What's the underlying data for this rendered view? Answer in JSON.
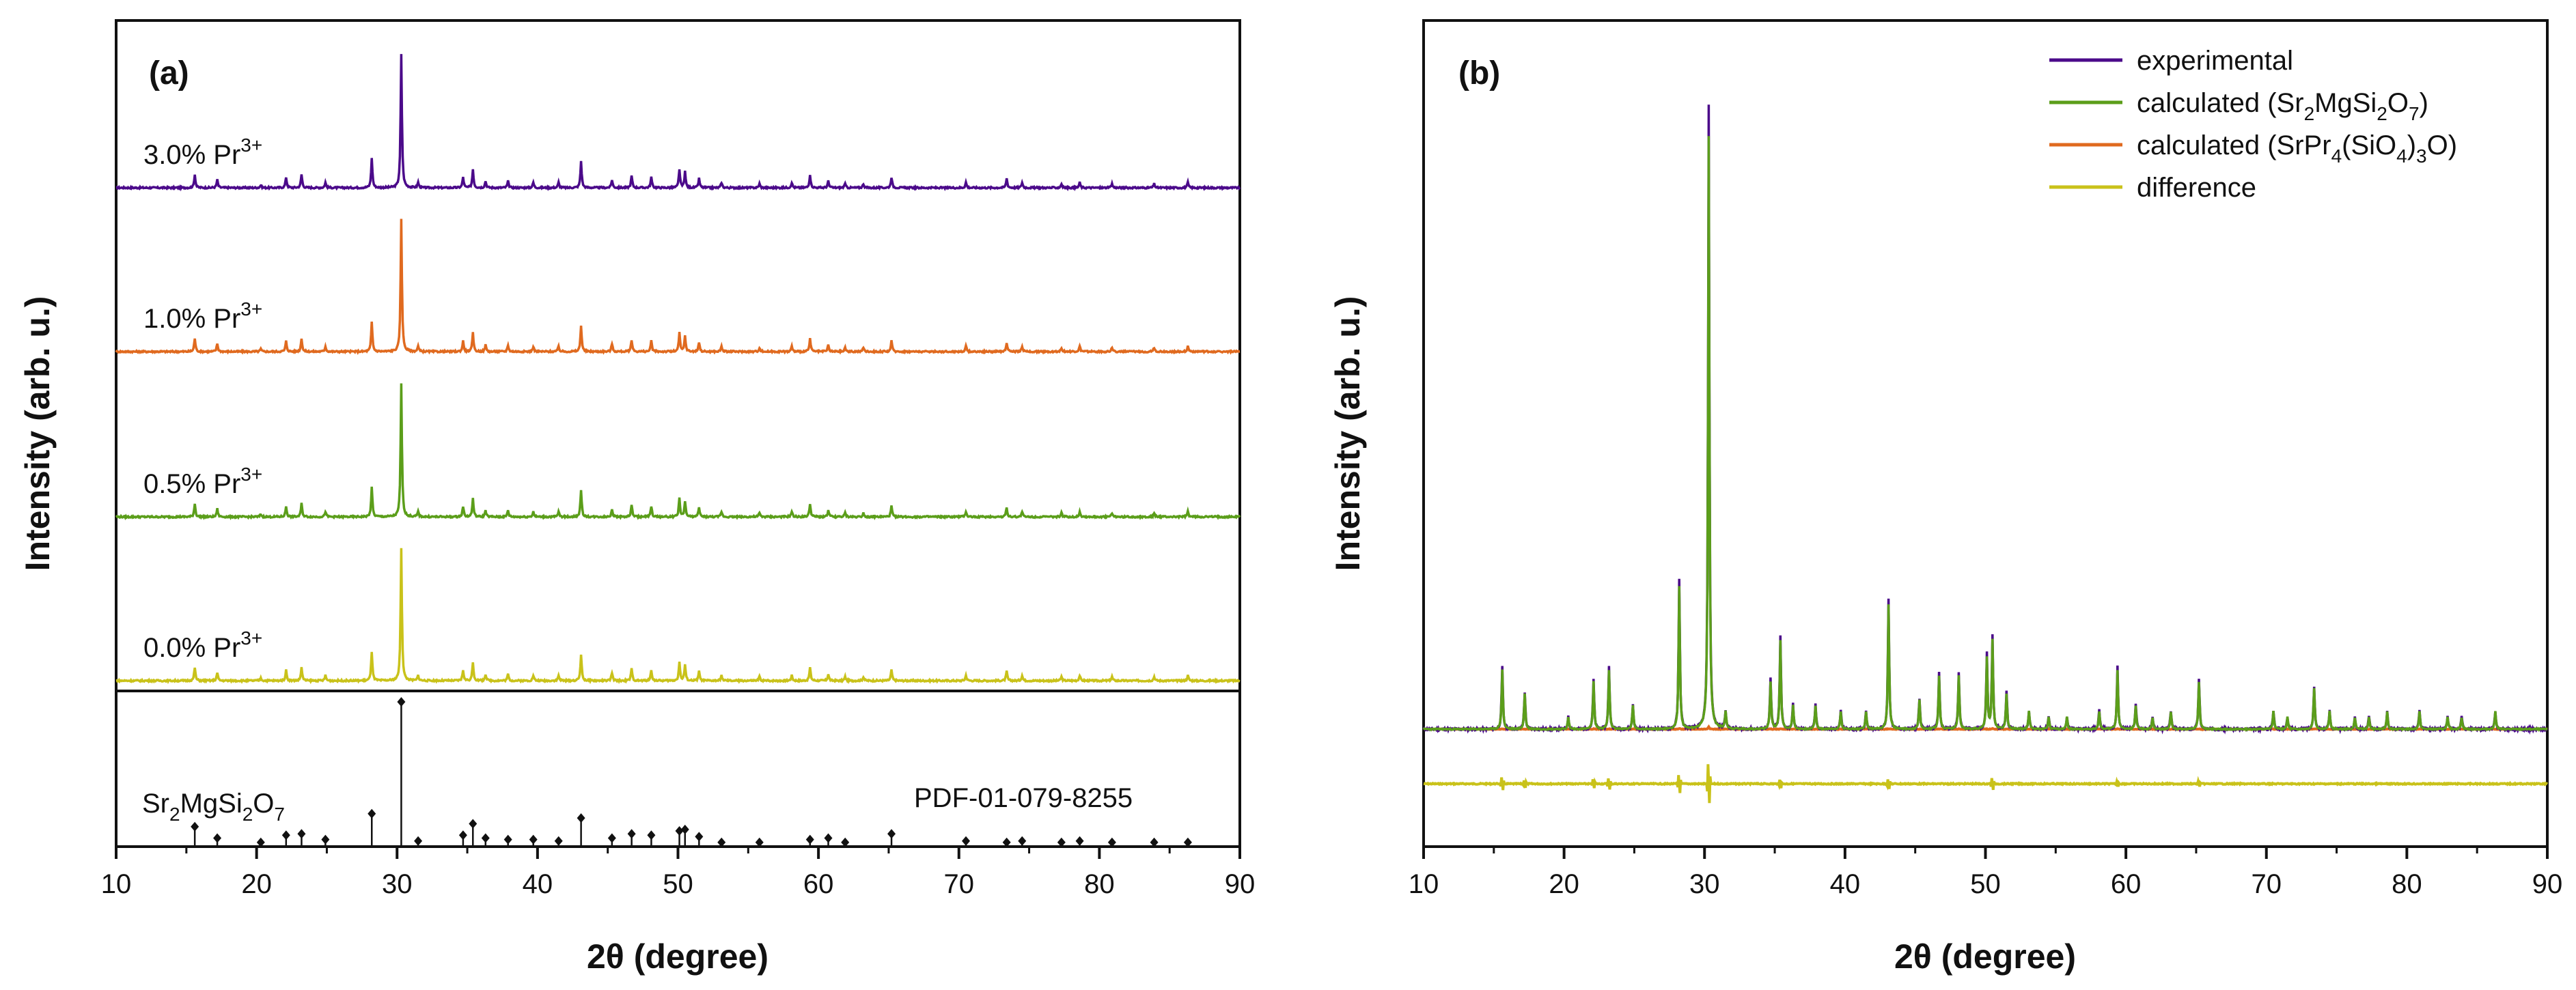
{
  "chart_data": [
    {
      "type": "line",
      "panel_label": "(a)",
      "xlabel_main": "2",
      "xlabel_theta": "θ",
      "xlabel_unit": " (degree)",
      "ylabel": "Intensity (arb. u.)",
      "xlim": [
        10,
        90
      ],
      "xticks": [
        "10",
        "20",
        "30",
        "40",
        "50",
        "60",
        "70",
        "80",
        "90"
      ],
      "ylim_note": "arbitrary units, stacked offset patterns",
      "series_label_unit": "Pr",
      "series_label_sup": "3+",
      "series": [
        {
          "name": "3.0% Pr3+",
          "label_prefix": "3.0% ",
          "color": "#4B0A8A"
        },
        {
          "name": "1.0% Pr3+",
          "label_prefix": "1.0% ",
          "color": "#E06A1F"
        },
        {
          "name": "0.5% Pr3+",
          "label_prefix": "0.5% ",
          "color": "#5B9E1A"
        },
        {
          "name": "0.0% Pr3+",
          "label_prefix": "0.0% ",
          "color": "#C9C21A"
        }
      ],
      "peaks": [
        {
          "x": 15.6,
          "rel": 0.1
        },
        {
          "x": 17.2,
          "rel": 0.06
        },
        {
          "x": 20.3,
          "rel": 0.02
        },
        {
          "x": 22.1,
          "rel": 0.08
        },
        {
          "x": 23.2,
          "rel": 0.1
        },
        {
          "x": 24.9,
          "rel": 0.04
        },
        {
          "x": 28.2,
          "rel": 0.22
        },
        {
          "x": 30.3,
          "rel": 1.0
        },
        {
          "x": 31.5,
          "rel": 0.04
        },
        {
          "x": 34.7,
          "rel": 0.08
        },
        {
          "x": 35.4,
          "rel": 0.14
        },
        {
          "x": 36.3,
          "rel": 0.05
        },
        {
          "x": 37.9,
          "rel": 0.05
        },
        {
          "x": 39.7,
          "rel": 0.04
        },
        {
          "x": 41.5,
          "rel": 0.04
        },
        {
          "x": 43.1,
          "rel": 0.2
        },
        {
          "x": 45.3,
          "rel": 0.06
        },
        {
          "x": 46.7,
          "rel": 0.09
        },
        {
          "x": 48.1,
          "rel": 0.08
        },
        {
          "x": 50.1,
          "rel": 0.14
        },
        {
          "x": 50.5,
          "rel": 0.12
        },
        {
          "x": 51.5,
          "rel": 0.07
        },
        {
          "x": 53.1,
          "rel": 0.04
        },
        {
          "x": 55.8,
          "rel": 0.03
        },
        {
          "x": 58.1,
          "rel": 0.04
        },
        {
          "x": 59.4,
          "rel": 0.1
        },
        {
          "x": 60.7,
          "rel": 0.05
        },
        {
          "x": 61.9,
          "rel": 0.03
        },
        {
          "x": 63.2,
          "rel": 0.03
        },
        {
          "x": 65.2,
          "rel": 0.08
        },
        {
          "x": 70.5,
          "rel": 0.04
        },
        {
          "x": 73.4,
          "rel": 0.07
        },
        {
          "x": 74.5,
          "rel": 0.04
        },
        {
          "x": 77.3,
          "rel": 0.03
        },
        {
          "x": 78.6,
          "rel": 0.04
        },
        {
          "x": 80.9,
          "rel": 0.03
        },
        {
          "x": 83.9,
          "rel": 0.03
        },
        {
          "x": 86.3,
          "rel": 0.04
        }
      ],
      "reference": {
        "compound": "Sr2MgSi2O7",
        "compound_parts": [
          {
            "t": "Sr",
            "sub": false
          },
          {
            "t": "2",
            "sub": true
          },
          {
            "t": "MgSi",
            "sub": false
          },
          {
            "t": "2",
            "sub": true
          },
          {
            "t": "O",
            "sub": false
          },
          {
            "t": "7",
            "sub": true
          }
        ],
        "card": "PDF-01-079-8255",
        "sticks": [
          {
            "x": 15.6,
            "rel": 0.13
          },
          {
            "x": 17.2,
            "rel": 0.05
          },
          {
            "x": 20.3,
            "rel": 0.02
          },
          {
            "x": 22.1,
            "rel": 0.07
          },
          {
            "x": 23.2,
            "rel": 0.08
          },
          {
            "x": 24.9,
            "rel": 0.04
          },
          {
            "x": 28.2,
            "rel": 0.22
          },
          {
            "x": 30.3,
            "rel": 1.0
          },
          {
            "x": 31.5,
            "rel": 0.03
          },
          {
            "x": 34.7,
            "rel": 0.07
          },
          {
            "x": 35.4,
            "rel": 0.15
          },
          {
            "x": 36.3,
            "rel": 0.05
          },
          {
            "x": 37.9,
            "rel": 0.04
          },
          {
            "x": 39.7,
            "rel": 0.04
          },
          {
            "x": 41.5,
            "rel": 0.03
          },
          {
            "x": 43.1,
            "rel": 0.19
          },
          {
            "x": 45.3,
            "rel": 0.05
          },
          {
            "x": 46.7,
            "rel": 0.08
          },
          {
            "x": 48.1,
            "rel": 0.07
          },
          {
            "x": 50.1,
            "rel": 0.1
          },
          {
            "x": 50.5,
            "rel": 0.11
          },
          {
            "x": 51.5,
            "rel": 0.06
          },
          {
            "x": 53.1,
            "rel": 0.02
          },
          {
            "x": 55.8,
            "rel": 0.02
          },
          {
            "x": 59.4,
            "rel": 0.04
          },
          {
            "x": 60.7,
            "rel": 0.05
          },
          {
            "x": 61.9,
            "rel": 0.02
          },
          {
            "x": 65.2,
            "rel": 0.08
          },
          {
            "x": 70.5,
            "rel": 0.03
          },
          {
            "x": 73.4,
            "rel": 0.02
          },
          {
            "x": 74.5,
            "rel": 0.03
          },
          {
            "x": 77.3,
            "rel": 0.02
          },
          {
            "x": 78.6,
            "rel": 0.03
          },
          {
            "x": 80.9,
            "rel": 0.02
          },
          {
            "x": 83.9,
            "rel": 0.02
          },
          {
            "x": 86.3,
            "rel": 0.02
          }
        ]
      }
    },
    {
      "type": "line",
      "panel_label": "(b)",
      "xlabel_main": "2",
      "xlabel_theta": "θ",
      "xlabel_unit": " (degree)",
      "ylabel": "Intensity (arb. u.)",
      "xlim": [
        10,
        90
      ],
      "xticks": [
        "10",
        "20",
        "30",
        "40",
        "50",
        "60",
        "70",
        "80",
        "90"
      ],
      "legend_position": "top-right",
      "legend": [
        {
          "name": "experimental",
          "color": "#4B0A8A",
          "parts": [
            {
              "t": "experimental",
              "sub": false
            }
          ]
        },
        {
          "name": "calculated (Sr2MgSi2O7)",
          "color": "#5B9E1A",
          "parts": [
            {
              "t": "calculated (Sr",
              "sub": false
            },
            {
              "t": "2",
              "sub": true
            },
            {
              "t": "MgSi",
              "sub": false
            },
            {
              "t": "2",
              "sub": true
            },
            {
              "t": "O",
              "sub": false
            },
            {
              "t": "7",
              "sub": true
            },
            {
              "t": ")",
              "sub": false
            }
          ]
        },
        {
          "name": "calculated (SrPr4(SiO4)3O)",
          "color": "#E06A1F",
          "parts": [
            {
              "t": "calculated (SrPr",
              "sub": false
            },
            {
              "t": "4",
              "sub": true
            },
            {
              "t": "(SiO",
              "sub": false
            },
            {
              "t": "4",
              "sub": true
            },
            {
              "t": ")",
              "sub": false
            },
            {
              "t": "3",
              "sub": true
            },
            {
              "t": "O)",
              "sub": false
            }
          ]
        },
        {
          "name": "difference",
          "color": "#C9C21A",
          "parts": [
            {
              "t": "difference",
              "sub": false
            }
          ]
        }
      ],
      "peaks": [
        {
          "x": 15.6,
          "rel": 0.1
        },
        {
          "x": 17.2,
          "rel": 0.06
        },
        {
          "x": 20.3,
          "rel": 0.02
        },
        {
          "x": 22.1,
          "rel": 0.08
        },
        {
          "x": 23.2,
          "rel": 0.1
        },
        {
          "x": 24.9,
          "rel": 0.04
        },
        {
          "x": 28.2,
          "rel": 0.24
        },
        {
          "x": 30.3,
          "rel": 1.0
        },
        {
          "x": 31.5,
          "rel": 0.03
        },
        {
          "x": 34.7,
          "rel": 0.08
        },
        {
          "x": 35.4,
          "rel": 0.15
        },
        {
          "x": 36.3,
          "rel": 0.04
        },
        {
          "x": 37.9,
          "rel": 0.04
        },
        {
          "x": 39.7,
          "rel": 0.03
        },
        {
          "x": 41.5,
          "rel": 0.03
        },
        {
          "x": 43.1,
          "rel": 0.21
        },
        {
          "x": 45.3,
          "rel": 0.05
        },
        {
          "x": 46.7,
          "rel": 0.09
        },
        {
          "x": 48.1,
          "rel": 0.09
        },
        {
          "x": 50.1,
          "rel": 0.12
        },
        {
          "x": 50.5,
          "rel": 0.15
        },
        {
          "x": 51.5,
          "rel": 0.06
        },
        {
          "x": 53.1,
          "rel": 0.03
        },
        {
          "x": 54.5,
          "rel": 0.02
        },
        {
          "x": 55.8,
          "rel": 0.02
        },
        {
          "x": 58.1,
          "rel": 0.03
        },
        {
          "x": 59.4,
          "rel": 0.1
        },
        {
          "x": 60.7,
          "rel": 0.04
        },
        {
          "x": 61.9,
          "rel": 0.02
        },
        {
          "x": 63.2,
          "rel": 0.03
        },
        {
          "x": 65.2,
          "rel": 0.08
        },
        {
          "x": 70.5,
          "rel": 0.03
        },
        {
          "x": 71.5,
          "rel": 0.02
        },
        {
          "x": 73.4,
          "rel": 0.07
        },
        {
          "x": 74.5,
          "rel": 0.03
        },
        {
          "x": 76.3,
          "rel": 0.02
        },
        {
          "x": 77.3,
          "rel": 0.02
        },
        {
          "x": 78.6,
          "rel": 0.03
        },
        {
          "x": 80.9,
          "rel": 0.03
        },
        {
          "x": 82.9,
          "rel": 0.02
        },
        {
          "x": 83.9,
          "rel": 0.02
        },
        {
          "x": 86.3,
          "rel": 0.03
        }
      ],
      "difference_spikes": [
        {
          "x": 15.6,
          "amp": 0.35
        },
        {
          "x": 17.2,
          "amp": 0.2
        },
        {
          "x": 22.1,
          "amp": 0.25
        },
        {
          "x": 23.2,
          "amp": 0.3
        },
        {
          "x": 28.2,
          "amp": 0.45
        },
        {
          "x": 30.3,
          "amp": 1.0
        },
        {
          "x": 35.4,
          "amp": 0.2
        },
        {
          "x": 43.1,
          "amp": 0.25
        },
        {
          "x": 50.5,
          "amp": 0.3
        },
        {
          "x": 59.4,
          "amp": 0.12
        },
        {
          "x": 65.2,
          "amp": 0.12
        }
      ]
    }
  ]
}
